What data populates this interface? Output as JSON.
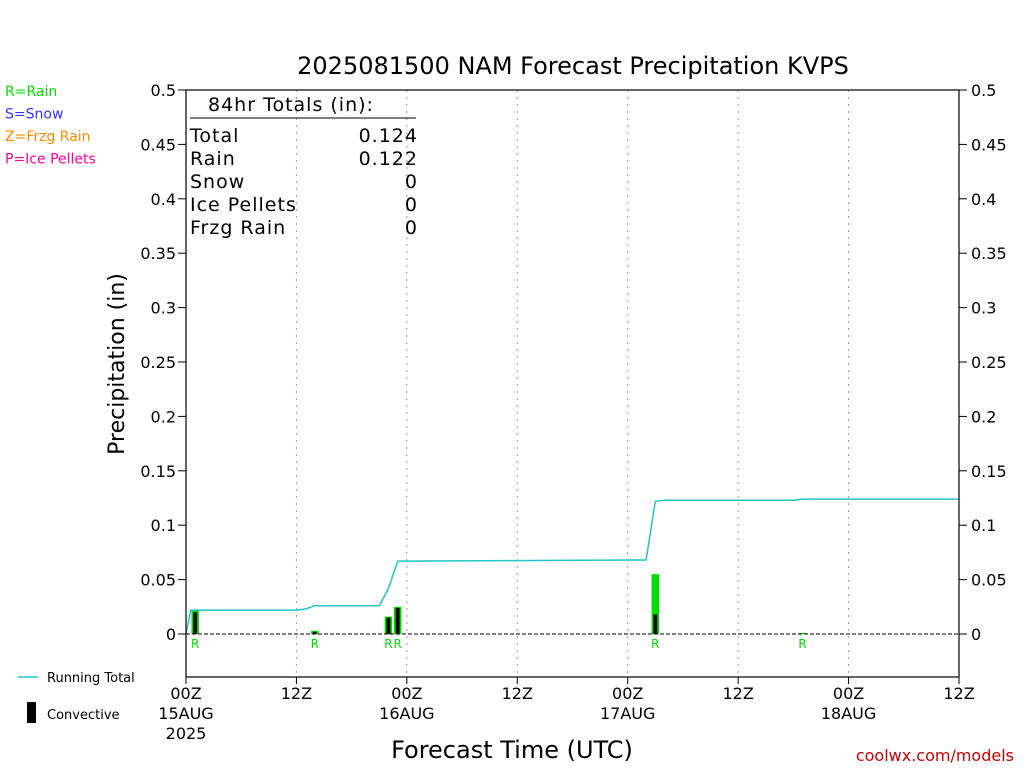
{
  "chart_data": {
    "type": "bar",
    "title": "2025081500 NAM Forecast Precipitation KVPS",
    "xlabel": "Forecast Time (UTC)",
    "ylabel": "Precipitation (in)",
    "ylim": [
      0,
      0.5
    ],
    "xlim_hours": [
      0,
      84
    ],
    "y_ticks": [
      "0",
      "0.05",
      "0.1",
      "0.15",
      "0.2",
      "0.25",
      "0.3",
      "0.35",
      "0.4",
      "0.45",
      "0.5"
    ],
    "x_ticks": [
      {
        "hour": 0,
        "label": "00Z",
        "date": "15AUG",
        "year": "2025"
      },
      {
        "hour": 12,
        "label": "12Z",
        "date": "",
        "year": ""
      },
      {
        "hour": 24,
        "label": "00Z",
        "date": "16AUG",
        "year": ""
      },
      {
        "hour": 36,
        "label": "12Z",
        "date": "",
        "year": ""
      },
      {
        "hour": 48,
        "label": "00Z",
        "date": "17AUG",
        "year": ""
      },
      {
        "hour": 60,
        "label": "12Z",
        "date": "",
        "year": ""
      },
      {
        "hour": 72,
        "label": "00Z",
        "date": "18AUG",
        "year": ""
      },
      {
        "hour": 84,
        "label": "12Z",
        "date": "",
        "year": ""
      }
    ],
    "grid": "vertical-dotted",
    "precip_bars": [
      {
        "hour": 1,
        "total": 0.022,
        "convective": 0.02,
        "type": "R"
      },
      {
        "hour": 14,
        "total": 0.003,
        "convective": 0.002,
        "type": "R"
      },
      {
        "hour": 22,
        "total": 0.016,
        "convective": 0.015,
        "type": "R"
      },
      {
        "hour": 23,
        "total": 0.025,
        "convective": 0.024,
        "type": "R"
      },
      {
        "hour": 51,
        "total": 0.055,
        "convective": 0.018,
        "type": "R"
      },
      {
        "hour": 67,
        "total": 0.001,
        "convective": 0.0,
        "type": "R"
      }
    ],
    "running_total": {
      "name": "Running Total",
      "color": "#22c4c4",
      "points": [
        [
          0,
          0.0
        ],
        [
          0.5,
          0.022
        ],
        [
          12,
          0.022
        ],
        [
          13,
          0.023
        ],
        [
          14,
          0.026
        ],
        [
          21,
          0.026
        ],
        [
          22,
          0.042
        ],
        [
          23,
          0.067
        ],
        [
          50,
          0.068
        ],
        [
          51,
          0.122
        ],
        [
          52,
          0.123
        ],
        [
          66,
          0.123
        ],
        [
          67,
          0.124
        ],
        [
          84,
          0.124
        ]
      ]
    },
    "colors": {
      "rain": "#00dd00",
      "snow": "#3333ff",
      "frzg_rain": "#ff8800",
      "ice_pellets": "#ff0099",
      "convective": "#000000",
      "credit": "#cc0000"
    }
  },
  "totals_box": {
    "header": "84hr Totals (in):",
    "rows": [
      {
        "label": "Total",
        "value": "0.124"
      },
      {
        "label": "Rain",
        "value": "0.122"
      },
      {
        "label": "Snow",
        "value": "0"
      },
      {
        "label": "Ice Pellets",
        "value": "0"
      },
      {
        "label": "Frzg Rain",
        "value": "0"
      }
    ]
  },
  "type_legend": [
    {
      "label": "R=Rain",
      "color": "#00dd00"
    },
    {
      "label": "S=Snow",
      "color": "#3333ff"
    },
    {
      "label": "Z=Frzg Rain",
      "color": "#ff8800"
    },
    {
      "label": "P=Ice Pellets",
      "color": "#ff0099"
    }
  ],
  "series_legend": {
    "running_total": "Running Total",
    "convective": "Convective"
  },
  "credit": "coolwx.com/models"
}
